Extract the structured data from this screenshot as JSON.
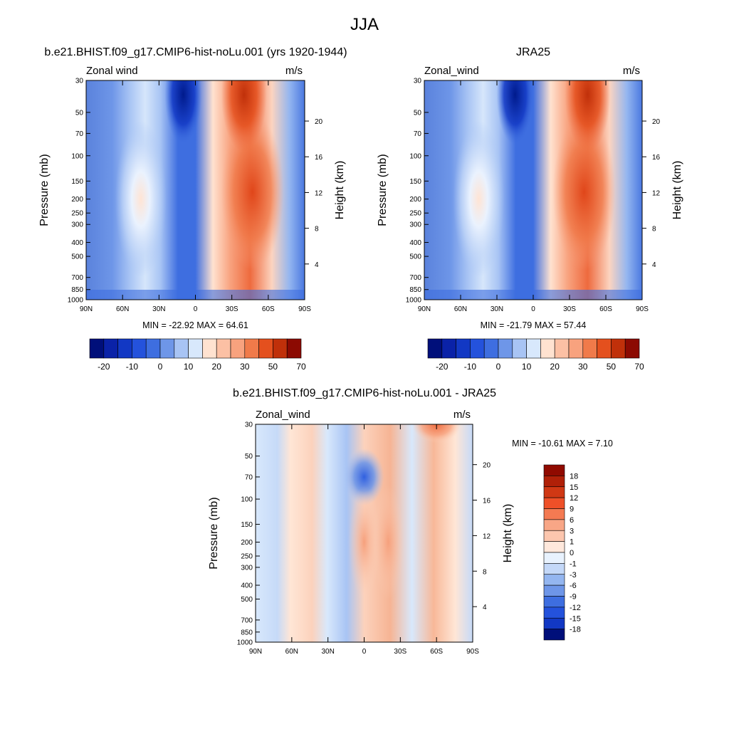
{
  "figure": {
    "title": "JJA"
  },
  "chart_data": [
    {
      "type": "heatmap",
      "id": "model",
      "title": "b.e21.BHIST.f09_g17.CMIP6-hist-noLu.001 (yrs 1920-1944)",
      "left_label": "Zonal wind",
      "units": "m/s",
      "ylabel": "Pressure (mb)",
      "ylabel_right": "Height (km)",
      "x_ticks": [
        "90N",
        "60N",
        "30N",
        "0",
        "30S",
        "60S",
        "90S"
      ],
      "y_ticks": [
        30,
        50,
        70,
        100,
        150,
        200,
        250,
        300,
        400,
        500,
        700,
        850,
        1000
      ],
      "height_ticks": [
        20,
        16,
        12,
        8,
        4
      ],
      "stats": "MIN = -22.92  MAX =  64.61",
      "colorbar_labels": [
        "-20",
        "-10",
        "0",
        "10",
        "20",
        "30",
        "50",
        "70"
      ],
      "features": [
        {
          "lat": -40,
          "p": 30,
          "u": 60
        },
        {
          "lat": -47,
          "p": 200,
          "u": 37
        },
        {
          "lat": 10,
          "p": 30,
          "u": -21
        },
        {
          "lat": 45,
          "p": 200,
          "u": 22
        }
      ]
    },
    {
      "type": "heatmap",
      "id": "obs",
      "title": "JRA25",
      "left_label": "Zonal_wind",
      "units": "m/s",
      "ylabel": "Pressure (mb)",
      "ylabel_right": "Height (km)",
      "x_ticks": [
        "90N",
        "60N",
        "30N",
        "0",
        "30S",
        "60S",
        "90S"
      ],
      "y_ticks": [
        30,
        50,
        70,
        100,
        150,
        200,
        250,
        300,
        400,
        500,
        700,
        850,
        1000
      ],
      "height_ticks": [
        20,
        16,
        12,
        8,
        4
      ],
      "stats": "MIN = -21.79  MAX =  57.44",
      "colorbar_labels": [
        "-20",
        "-10",
        "0",
        "10",
        "20",
        "30",
        "50",
        "70"
      ],
      "features": [
        {
          "lat": -45,
          "p": 30,
          "u": 55
        },
        {
          "lat": -42,
          "p": 200,
          "u": 34
        },
        {
          "lat": 15,
          "p": 30,
          "u": -20
        },
        {
          "lat": 45,
          "p": 200,
          "u": 20
        }
      ]
    },
    {
      "type": "heatmap",
      "id": "diff",
      "title": "b.e21.BHIST.f09_g17.CMIP6-hist-noLu.001 - JRA25",
      "left_label": "Zonal_wind",
      "units": "m/s",
      "ylabel": "Pressure (mb)",
      "ylabel_right": "Height (km)",
      "x_ticks": [
        "90N",
        "60N",
        "30N",
        "0",
        "30S",
        "60S",
        "90S"
      ],
      "y_ticks": [
        30,
        50,
        70,
        100,
        150,
        200,
        250,
        300,
        400,
        500,
        700,
        850,
        1000
      ],
      "height_ticks": [
        20,
        16,
        12,
        8,
        4
      ],
      "stats": "MIN = -10.61  MAX =   7.10",
      "colorbar_labels": [
        "18",
        "15",
        "12",
        "9",
        "6",
        "3",
        "1",
        "0",
        "-1",
        "-3",
        "-6",
        "-9",
        "-12",
        "-15",
        "-18"
      ],
      "features": [
        {
          "lat": 0,
          "p": 70,
          "u": -9
        },
        {
          "lat": -60,
          "p": 30,
          "u": 7
        },
        {
          "lat": 0,
          "p": 200,
          "u": 4
        },
        {
          "lat": -20,
          "p": 200,
          "u": 4
        }
      ]
    }
  ]
}
